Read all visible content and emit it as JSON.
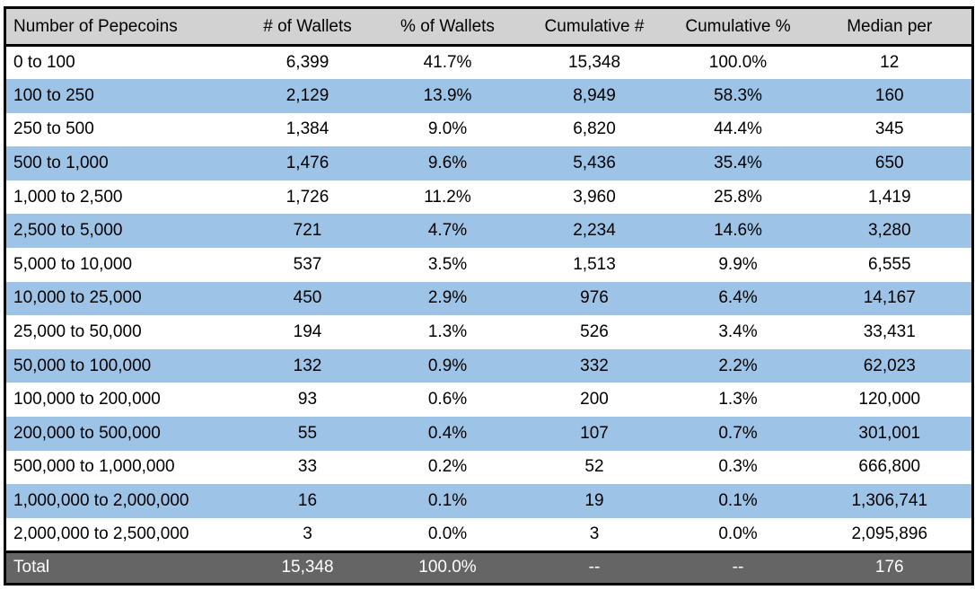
{
  "colors": {
    "header_bg": "#d2d2d2",
    "row_bg": "#ffffff",
    "row_alt_bg": "#9dc3e6",
    "total_bg": "#656565",
    "total_text": "#ffffff",
    "border": "#000000",
    "text": "#000000"
  },
  "chart_data": {
    "type": "table",
    "columns": [
      "Number of Pepecoins",
      "# of Wallets",
      "% of Wallets",
      "Cumulative #",
      "Cumulative %",
      "Median per"
    ],
    "rows": [
      [
        "0 to 100",
        "6,399",
        "41.7%",
        "15,348",
        "100.0%",
        "12"
      ],
      [
        "100 to 250",
        "2,129",
        "13.9%",
        "8,949",
        "58.3%",
        "160"
      ],
      [
        "250 to 500",
        "1,384",
        "9.0%",
        "6,820",
        "44.4%",
        "345"
      ],
      [
        "500 to 1,000",
        "1,476",
        "9.6%",
        "5,436",
        "35.4%",
        "650"
      ],
      [
        "1,000 to 2,500",
        "1,726",
        "11.2%",
        "3,960",
        "25.8%",
        "1,419"
      ],
      [
        "2,500 to 5,000",
        "721",
        "4.7%",
        "2,234",
        "14.6%",
        "3,280"
      ],
      [
        "5,000 to 10,000",
        "537",
        "3.5%",
        "1,513",
        "9.9%",
        "6,555"
      ],
      [
        "10,000 to 25,000",
        "450",
        "2.9%",
        "976",
        "6.4%",
        "14,167"
      ],
      [
        "25,000 to 50,000",
        "194",
        "1.3%",
        "526",
        "3.4%",
        "33,431"
      ],
      [
        "50,000 to 100,000",
        "132",
        "0.9%",
        "332",
        "2.2%",
        "62,023"
      ],
      [
        "100,000 to 200,000",
        "93",
        "0.6%",
        "200",
        "1.3%",
        "120,000"
      ],
      [
        "200,000 to 500,000",
        "55",
        "0.4%",
        "107",
        "0.7%",
        "301,001"
      ],
      [
        "500,000 to 1,000,000",
        "33",
        "0.2%",
        "52",
        "0.3%",
        "666,800"
      ],
      [
        "1,000,000 to 2,000,000",
        "16",
        "0.1%",
        "19",
        "0.1%",
        "1,306,741"
      ],
      [
        "2,000,000 to 2,500,000",
        "3",
        "0.0%",
        "3",
        "0.0%",
        "2,095,896"
      ]
    ],
    "total": [
      "Total",
      "15,348",
      "100.0%",
      "--",
      "--",
      "176"
    ]
  }
}
